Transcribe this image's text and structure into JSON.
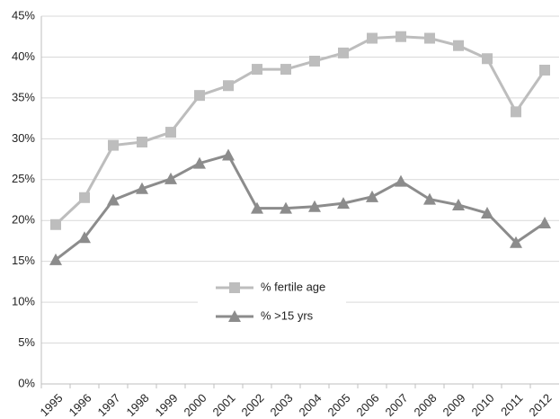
{
  "chart_data": {
    "type": "line",
    "categories": [
      "1995",
      "1996",
      "1997",
      "1998",
      "1999",
      "2000",
      "2001",
      "2002",
      "2003",
      "2004",
      "2005",
      "2006",
      "2007",
      "2008",
      "2009",
      "2010",
      "2011",
      "2012"
    ],
    "series": [
      {
        "name": "% fertile age",
        "color": "#bdbdbd",
        "marker": "square",
        "values": [
          19.5,
          22.8,
          29.2,
          29.6,
          30.8,
          35.3,
          36.5,
          38.5,
          38.5,
          39.5,
          40.5,
          42.3,
          42.5,
          42.3,
          41.4,
          39.8,
          33.3,
          38.4
        ]
      },
      {
        "name": "% >15 yrs",
        "color": "#8c8c8c",
        "marker": "triangle",
        "values": [
          15.2,
          17.9,
          22.5,
          23.9,
          25.1,
          27.0,
          28.0,
          21.5,
          21.5,
          21.7,
          22.1,
          22.9,
          24.8,
          22.6,
          21.9,
          20.9,
          17.3,
          19.7
        ]
      }
    ],
    "ylim": [
      0,
      45
    ],
    "yticks": [
      {
        "value": 0,
        "label": "0%"
      },
      {
        "value": 5,
        "label": "5%"
      },
      {
        "value": 10,
        "label": "10%"
      },
      {
        "value": 15,
        "label": "15%"
      },
      {
        "value": 20,
        "label": "20%"
      },
      {
        "value": 25,
        "label": "25%"
      },
      {
        "value": 30,
        "label": "30%"
      },
      {
        "value": 35,
        "label": "35%"
      },
      {
        "value": 40,
        "label": "40%"
      },
      {
        "value": 45,
        "label": "45%"
      }
    ],
    "grid": true
  }
}
